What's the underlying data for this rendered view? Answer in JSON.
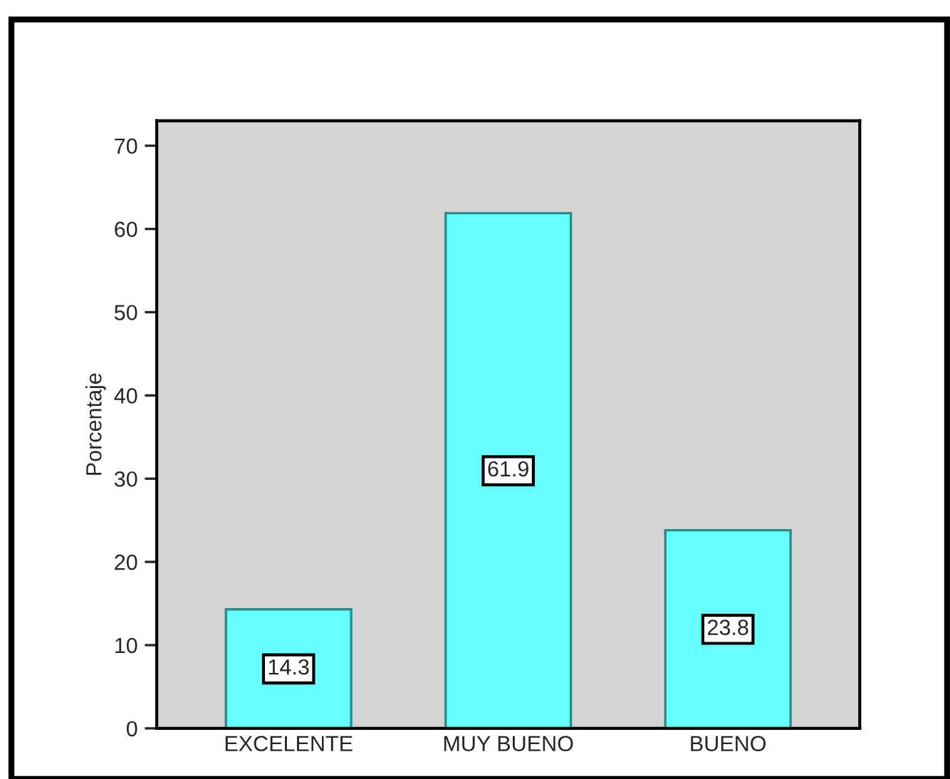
{
  "chart_data": {
    "type": "bar",
    "ylabel": "Porcentaje",
    "categories": [
      "EXCELENTE",
      "MUY BUENO",
      "BUENO"
    ],
    "values": [
      14.3,
      61.9,
      23.8
    ],
    "color": "#66ffff",
    "ylim": [
      0,
      73
    ],
    "yticks": [
      0,
      10,
      20,
      30,
      40,
      50,
      60,
      70
    ],
    "grid": false,
    "data_labels": true
  }
}
